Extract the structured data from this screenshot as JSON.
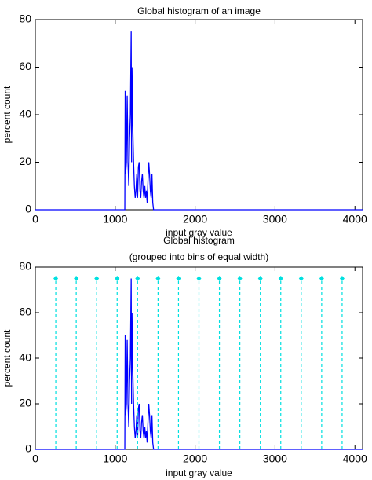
{
  "chart_data": [
    {
      "type": "line",
      "title": "Global histogram of an image",
      "xlabel": "input gray value",
      "ylabel": "percent count",
      "xlim": [
        0,
        4096
      ],
      "ylim": [
        0,
        80
      ],
      "xticks": [
        0,
        1000,
        2000,
        3000,
        4000
      ],
      "yticks": [
        0,
        20,
        40,
        60,
        80
      ],
      "series": [
        {
          "color": "#0000ff",
          "style": "line",
          "x": [
            0,
            1120,
            1125,
            1130,
            1140,
            1150,
            1160,
            1170,
            1180,
            1190,
            1200,
            1205,
            1210,
            1220,
            1230,
            1240,
            1250,
            1260,
            1270,
            1280,
            1290,
            1300,
            1310,
            1320,
            1330,
            1340,
            1350,
            1360,
            1370,
            1380,
            1390,
            1400,
            1410,
            1420,
            1430,
            1440,
            1450,
            1460,
            1470,
            1480,
            4096
          ],
          "values": [
            0,
            0,
            50,
            15,
            20,
            48,
            20,
            10,
            30,
            40,
            75,
            20,
            60,
            35,
            20,
            10,
            5,
            8,
            15,
            5,
            18,
            20,
            8,
            5,
            12,
            15,
            8,
            5,
            10,
            5,
            8,
            3,
            12,
            20,
            15,
            8,
            5,
            15,
            3,
            0,
            0
          ]
        }
      ]
    },
    {
      "type": "line",
      "title": "Global histogram",
      "subtitle": "(grouped into bins of equal width)",
      "xlabel": "input gray value",
      "ylabel": "percent count",
      "xlim": [
        0,
        4096
      ],
      "ylim": [
        0,
        80
      ],
      "xticks": [
        0,
        1000,
        2000,
        3000,
        4000
      ],
      "yticks": [
        0,
        20,
        40,
        60,
        80
      ],
      "series": [
        {
          "color": "#0000ff",
          "style": "line",
          "x": [
            0,
            1120,
            1125,
            1130,
            1140,
            1150,
            1160,
            1170,
            1180,
            1190,
            1200,
            1205,
            1210,
            1220,
            1230,
            1240,
            1250,
            1260,
            1270,
            1280,
            1290,
            1300,
            1310,
            1320,
            1330,
            1340,
            1350,
            1360,
            1370,
            1380,
            1390,
            1400,
            1410,
            1420,
            1430,
            1440,
            1450,
            1460,
            1470,
            1480,
            4096
          ],
          "values": [
            0,
            0,
            50,
            15,
            20,
            48,
            20,
            10,
            30,
            40,
            75,
            20,
            60,
            35,
            20,
            10,
            5,
            8,
            15,
            5,
            18,
            20,
            8,
            5,
            12,
            15,
            8,
            5,
            10,
            5,
            8,
            3,
            12,
            20,
            15,
            8,
            5,
            15,
            3,
            0,
            0
          ]
        },
        {
          "color": "#00e0e0",
          "style": "stem",
          "x": [
            256,
            512,
            768,
            1024,
            1280,
            1536,
            1792,
            2048,
            2304,
            2560,
            2816,
            3072,
            3328,
            3584,
            3840
          ],
          "values": [
            75,
            75,
            75,
            75,
            75,
            75,
            75,
            75,
            75,
            75,
            75,
            75,
            75,
            75,
            75
          ]
        }
      ]
    }
  ]
}
